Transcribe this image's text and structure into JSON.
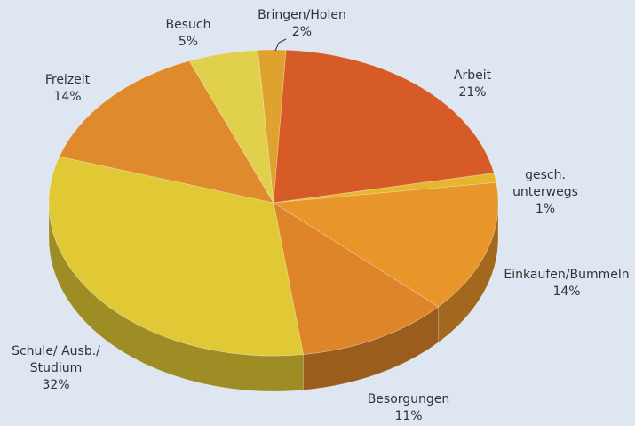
{
  "chart_data": {
    "type": "pie",
    "categories": [
      "Bringen/Holen",
      "Arbeit",
      "gesch. unterwegs",
      "Einkaufen/Bummeln",
      "Besorgungen",
      "Schule/ Ausb./\nStudium",
      "Freizeit",
      "Besuch"
    ],
    "values": [
      2,
      21,
      1,
      14,
      11,
      32,
      14,
      5
    ],
    "value_labels": [
      "2%",
      "21%",
      "1%",
      "14%",
      "11%",
      "32%",
      "14%",
      "5%"
    ],
    "colors": [
      "#e0a22e",
      "#d65b26",
      "#e6b72e",
      "#e8952a",
      "#de8529",
      "#e0c934",
      "#df8a2c",
      "#e1d04c"
    ]
  }
}
